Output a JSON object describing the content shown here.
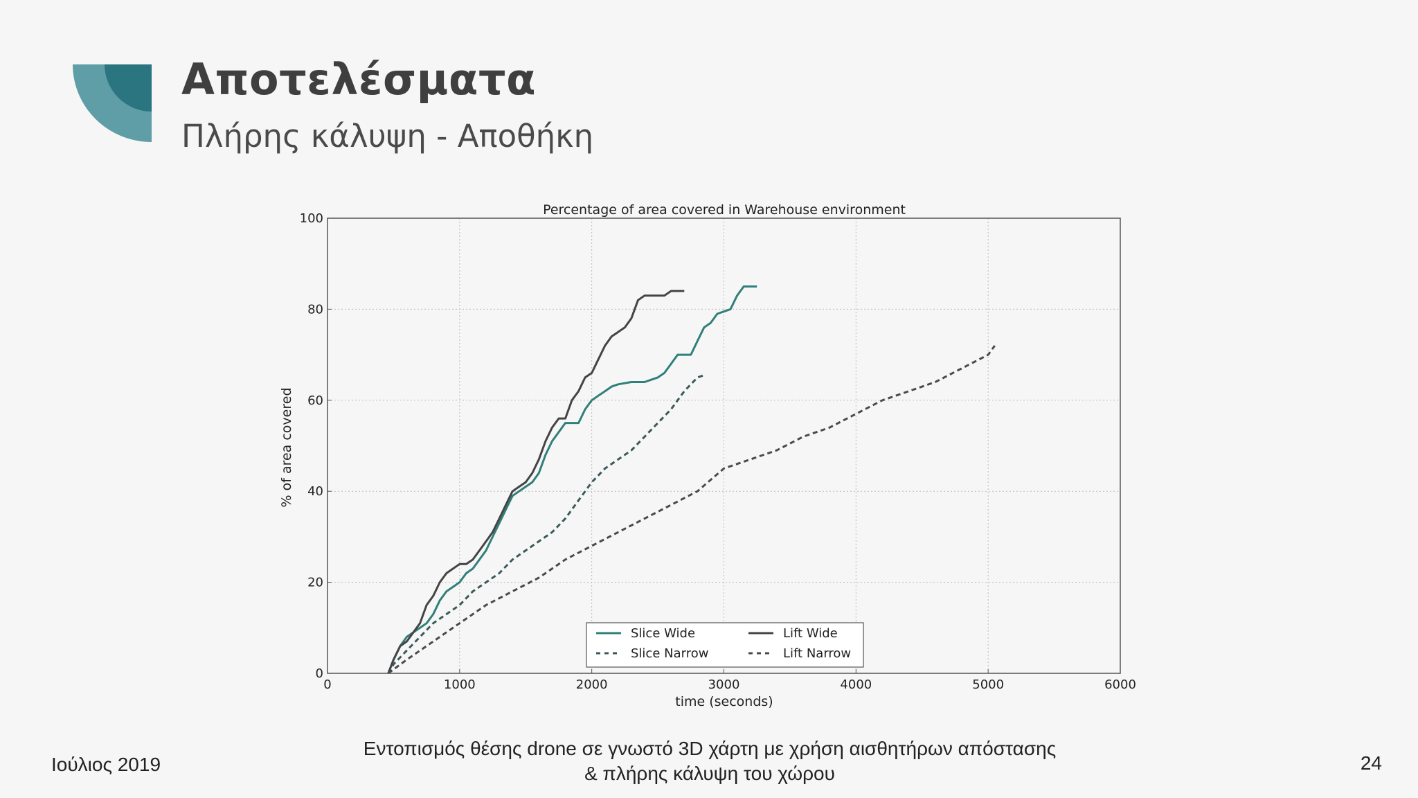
{
  "slide": {
    "title": "Αποτελέσματα",
    "subtitle": "Πλήρης κάλυψη - Αποθήκη",
    "footer_left": "Ιούλιος 2019",
    "footer_center_line1": "Εντοπισμός θέσης drone σε γνωστό 3D χάρτη με χρήση αισθητήρων απόστασης",
    "footer_center_line2": "& πλήρης κάλυψη του χώρου",
    "page_number": "24",
    "logo_colors": [
      "#5f9ea6",
      "#3f8791",
      "#2a7580"
    ]
  },
  "chart_data": {
    "type": "line",
    "title": "Percentage of area covered in Warehouse environment",
    "xlabel": "time (seconds)",
    "ylabel": "% of area covered",
    "xlim": [
      0,
      6000
    ],
    "ylim": [
      0,
      100
    ],
    "xticks": [
      0,
      1000,
      2000,
      3000,
      4000,
      5000,
      6000
    ],
    "yticks": [
      0,
      20,
      40,
      60,
      80,
      100
    ],
    "grid": true,
    "legend_position": "lower-center",
    "series": [
      {
        "name": "Slice Wide",
        "color": "#2f7f7a",
        "dash": "solid",
        "points": [
          [
            460,
            0
          ],
          [
            500,
            3
          ],
          [
            550,
            6
          ],
          [
            600,
            8
          ],
          [
            650,
            9
          ],
          [
            700,
            10
          ],
          [
            750,
            11
          ],
          [
            800,
            13
          ],
          [
            850,
            16
          ],
          [
            900,
            18
          ],
          [
            950,
            19
          ],
          [
            1000,
            20
          ],
          [
            1050,
            22
          ],
          [
            1100,
            23
          ],
          [
            1150,
            25
          ],
          [
            1200,
            27
          ],
          [
            1250,
            30
          ],
          [
            1300,
            33
          ],
          [
            1350,
            36
          ],
          [
            1400,
            39
          ],
          [
            1450,
            40
          ],
          [
            1500,
            41
          ],
          [
            1550,
            42
          ],
          [
            1600,
            44
          ],
          [
            1650,
            48
          ],
          [
            1700,
            51
          ],
          [
            1750,
            53
          ],
          [
            1800,
            55
          ],
          [
            1900,
            55
          ],
          [
            1950,
            58
          ],
          [
            2000,
            60
          ],
          [
            2050,
            61
          ],
          [
            2100,
            62
          ],
          [
            2150,
            63
          ],
          [
            2200,
            63.5
          ],
          [
            2300,
            64
          ],
          [
            2400,
            64
          ],
          [
            2450,
            64.5
          ],
          [
            2500,
            65
          ],
          [
            2550,
            66
          ],
          [
            2600,
            68
          ],
          [
            2650,
            70
          ],
          [
            2750,
            70
          ],
          [
            2800,
            73
          ],
          [
            2850,
            76
          ],
          [
            2900,
            77
          ],
          [
            2950,
            79
          ],
          [
            3000,
            79.5
          ],
          [
            3050,
            80
          ],
          [
            3100,
            83
          ],
          [
            3150,
            85
          ],
          [
            3250,
            85
          ]
        ]
      },
      {
        "name": "Slice Narrow",
        "color": "#3a5a5a",
        "dash": "dashed",
        "points": [
          [
            460,
            0
          ],
          [
            500,
            2
          ],
          [
            600,
            5
          ],
          [
            700,
            8
          ],
          [
            800,
            11
          ],
          [
            900,
            13
          ],
          [
            1000,
            15
          ],
          [
            1100,
            18
          ],
          [
            1200,
            20
          ],
          [
            1300,
            22
          ],
          [
            1400,
            25
          ],
          [
            1500,
            27
          ],
          [
            1600,
            29
          ],
          [
            1700,
            31
          ],
          [
            1800,
            34
          ],
          [
            1900,
            38
          ],
          [
            2000,
            42
          ],
          [
            2100,
            45
          ],
          [
            2200,
            47
          ],
          [
            2300,
            49
          ],
          [
            2400,
            52
          ],
          [
            2500,
            55
          ],
          [
            2600,
            58
          ],
          [
            2700,
            62
          ],
          [
            2800,
            65
          ],
          [
            2850,
            65.5
          ]
        ]
      },
      {
        "name": "Lift Wide",
        "color": "#444444",
        "dash": "solid",
        "points": [
          [
            460,
            0
          ],
          [
            500,
            3
          ],
          [
            550,
            6
          ],
          [
            600,
            7
          ],
          [
            650,
            9
          ],
          [
            700,
            11
          ],
          [
            750,
            15
          ],
          [
            800,
            17
          ],
          [
            850,
            20
          ],
          [
            900,
            22
          ],
          [
            950,
            23
          ],
          [
            1000,
            24
          ],
          [
            1050,
            24
          ],
          [
            1100,
            25
          ],
          [
            1150,
            27
          ],
          [
            1200,
            29
          ],
          [
            1250,
            31
          ],
          [
            1300,
            34
          ],
          [
            1350,
            37
          ],
          [
            1400,
            40
          ],
          [
            1450,
            41
          ],
          [
            1500,
            42
          ],
          [
            1550,
            44
          ],
          [
            1600,
            47
          ],
          [
            1650,
            51
          ],
          [
            1700,
            54
          ],
          [
            1750,
            56
          ],
          [
            1800,
            56
          ],
          [
            1850,
            60
          ],
          [
            1900,
            62
          ],
          [
            1950,
            65
          ],
          [
            2000,
            66
          ],
          [
            2050,
            69
          ],
          [
            2100,
            72
          ],
          [
            2150,
            74
          ],
          [
            2200,
            75
          ],
          [
            2250,
            76
          ],
          [
            2300,
            78
          ],
          [
            2350,
            82
          ],
          [
            2400,
            83
          ],
          [
            2550,
            83
          ],
          [
            2600,
            84
          ],
          [
            2700,
            84
          ]
        ]
      },
      {
        "name": "Lift Narrow",
        "color": "#4a4a4a",
        "dash": "dashed",
        "points": [
          [
            460,
            0
          ],
          [
            600,
            3
          ],
          [
            800,
            7
          ],
          [
            1000,
            11
          ],
          [
            1200,
            15
          ],
          [
            1400,
            18
          ],
          [
            1600,
            21
          ],
          [
            1800,
            25
          ],
          [
            2000,
            28
          ],
          [
            2200,
            31
          ],
          [
            2400,
            34
          ],
          [
            2600,
            37
          ],
          [
            2800,
            40
          ],
          [
            3000,
            45
          ],
          [
            3200,
            47
          ],
          [
            3400,
            49
          ],
          [
            3600,
            52
          ],
          [
            3800,
            54
          ],
          [
            4000,
            57
          ],
          [
            4200,
            60
          ],
          [
            4400,
            62
          ],
          [
            4600,
            64
          ],
          [
            4800,
            67
          ],
          [
            5000,
            70
          ],
          [
            5050,
            72
          ]
        ]
      }
    ]
  }
}
